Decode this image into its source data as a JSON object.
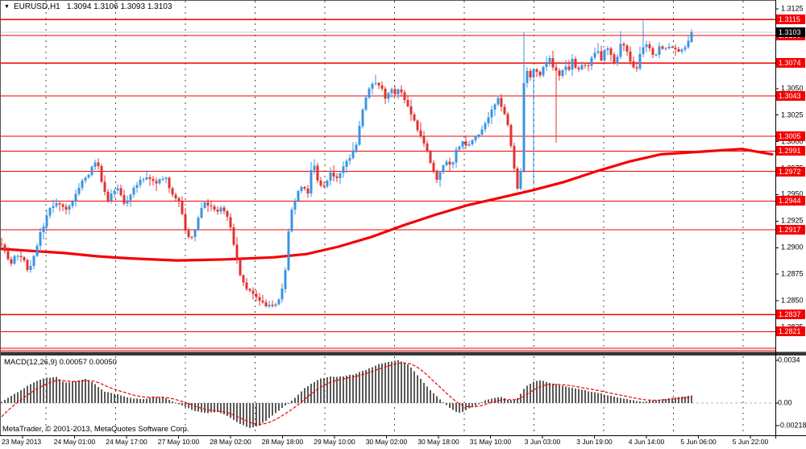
{
  "window": {
    "symbol_title": "EURUSD,H1",
    "ohlc_display": "1.3094 1.3106 1.3093 1.3103",
    "dropdown_icon": "triangle-down",
    "copyright": "MetaTrader, © 2001-2013, MetaQuotes Software Corp."
  },
  "indicator": {
    "label": "MACD(12,26,9) 0.00057 0.00050"
  },
  "colors": {
    "bull_candle": "#3b94e0",
    "bear_candle": "#e03232",
    "line_object": "#f50000",
    "trend_line": "#f50000",
    "current_price_line": "#c9c9c9",
    "grid": "#4a4a4a",
    "histogram": "#5a5a5a",
    "signal_line": "#f50000",
    "axis_text": "#000000",
    "background": "#ffffff"
  },
  "price_axis": {
    "ticks": [
      "1.3125",
      "1.3100",
      "1.3075",
      "1.3050",
      "1.3025",
      "1.3000",
      "1.2975",
      "1.2950",
      "1.2925",
      "1.2900",
      "1.2875",
      "1.2850",
      "1.2825"
    ],
    "tick_values": [
      1.3125,
      1.31,
      1.3075,
      1.305,
      1.3025,
      1.3,
      1.2975,
      1.295,
      1.2925,
      1.29,
      1.2875,
      1.285,
      1.2825
    ],
    "red_labels": [
      "1.3115",
      "1.3100",
      "1.3074",
      "1.3043",
      "1.3005",
      "1.2991",
      "1.2972",
      "1.2944",
      "1.2917",
      "1.2837",
      "1.2821"
    ],
    "current_label": "1.3103"
  },
  "time_axis": {
    "labels": [
      "23 May 2013",
      "24 May 01:00",
      "24 May 17:00",
      "27 May 10:00",
      "28 May 02:00",
      "28 May 18:00",
      "29 May 10:00",
      "30 May 02:00",
      "30 May 18:00",
      "31 May 10:00",
      "3 Jun 03:00",
      "3 Jun 19:00",
      "4 Jun 14:00",
      "5 Jun 06:00",
      "5 Jun 22:00"
    ]
  },
  "macd_axis": {
    "top": "0.0034",
    "zero": "0.00",
    "bottom": "-0.00218"
  },
  "chart_data": [
    {
      "type": "candlestick",
      "symbol": "EURUSD",
      "timeframe": "H1",
      "title": "EURUSD,H1 1.3094 1.3106 1.3093 1.3103",
      "current_ohlc": {
        "open": 1.3094,
        "high": 1.3106,
        "low": 1.3093,
        "close": 1.3103
      },
      "current_price": 1.3103,
      "y_range": [
        1.2815,
        1.313
      ],
      "x_labels": [
        "23 May 2013",
        "24 May 01:00",
        "24 May 17:00",
        "27 May 10:00",
        "28 May 02:00",
        "28 May 18:00",
        "29 May 10:00",
        "30 May 02:00",
        "30 May 18:00",
        "31 May 10:00",
        "3 Jun 03:00",
        "3 Jun 19:00",
        "4 Jun 14:00",
        "5 Jun 06:00",
        "5 Jun 22:00"
      ],
      "horizontal_lines": [
        1.3115,
        1.31,
        1.3074,
        1.3043,
        1.3005,
        1.2991,
        1.2972,
        1.2944,
        1.2917,
        1.2837,
        1.2821
      ],
      "trend_ma_points": [
        [
          0,
          1.2899
        ],
        [
          40,
          1.2897
        ],
        [
          80,
          1.2895
        ],
        [
          120,
          1.2892
        ],
        [
          160,
          1.289
        ],
        [
          220,
          1.2888
        ],
        [
          280,
          1.2889
        ],
        [
          340,
          1.2891
        ],
        [
          380,
          1.2894
        ],
        [
          420,
          1.2901
        ],
        [
          460,
          1.291
        ],
        [
          500,
          1.2921
        ],
        [
          540,
          1.2931
        ],
        [
          580,
          1.294
        ],
        [
          620,
          1.2947
        ],
        [
          660,
          1.2954
        ],
        [
          700,
          1.2962
        ],
        [
          740,
          1.2972
        ],
        [
          780,
          1.2981
        ],
        [
          820,
          1.2988
        ],
        [
          880,
          1.2991
        ],
        [
          920,
          1.2993
        ],
        [
          958,
          1.2988
        ]
      ],
      "price_path": [
        [
          2,
          1.2905
        ],
        [
          8,
          1.2893
        ],
        [
          14,
          1.2886
        ],
        [
          20,
          1.2893
        ],
        [
          28,
          1.289
        ],
        [
          36,
          1.2878
        ],
        [
          44,
          1.2898
        ],
        [
          52,
          1.2918
        ],
        [
          62,
          1.2936
        ],
        [
          72,
          1.2944
        ],
        [
          82,
          1.2934
        ],
        [
          92,
          1.2946
        ],
        [
          102,
          1.2962
        ],
        [
          112,
          1.2972
        ],
        [
          120,
          1.2983
        ],
        [
          126,
          1.2962
        ],
        [
          134,
          1.2945
        ],
        [
          144,
          1.2957
        ],
        [
          154,
          1.2942
        ],
        [
          164,
          1.2953
        ],
        [
          174,
          1.2963
        ],
        [
          184,
          1.2967
        ],
        [
          194,
          1.296
        ],
        [
          204,
          1.2968
        ],
        [
          214,
          1.2951
        ],
        [
          224,
          1.294
        ],
        [
          231,
          1.2914
        ],
        [
          238,
          1.2909
        ],
        [
          246,
          1.2928
        ],
        [
          253,
          1.2944
        ],
        [
          260,
          1.2939
        ],
        [
          268,
          1.2934
        ],
        [
          276,
          1.2938
        ],
        [
          284,
          1.2925
        ],
        [
          292,
          1.2898
        ],
        [
          300,
          1.2868
        ],
        [
          308,
          1.286
        ],
        [
          316,
          1.2855
        ],
        [
          324,
          1.2848
        ],
        [
          332,
          1.2845
        ],
        [
          340,
          1.2846
        ],
        [
          348,
          1.2852
        ],
        [
          354,
          1.288
        ],
        [
          360,
          1.2932
        ],
        [
          368,
          1.295
        ],
        [
          376,
          1.296
        ],
        [
          382,
          1.2953
        ],
        [
          388,
          1.2982
        ],
        [
          394,
          1.2964
        ],
        [
          402,
          1.2957
        ],
        [
          410,
          1.297
        ],
        [
          418,
          1.2964
        ],
        [
          426,
          1.2977
        ],
        [
          434,
          1.2986
        ],
        [
          442,
          1.2998
        ],
        [
          448,
          1.3022
        ],
        [
          454,
          1.3042
        ],
        [
          460,
          1.3053
        ],
        [
          466,
          1.3057
        ],
        [
          472,
          1.3051
        ],
        [
          478,
          1.3042
        ],
        [
          484,
          1.305
        ],
        [
          490,
          1.3043
        ],
        [
          496,
          1.305
        ],
        [
          502,
          1.304
        ],
        [
          508,
          1.303
        ],
        [
          514,
          1.302
        ],
        [
          520,
          1.3008
        ],
        [
          528,
          1.2993
        ],
        [
          536,
          1.2978
        ],
        [
          542,
          1.2962
        ],
        [
          548,
          1.2973
        ],
        [
          554,
          1.2983
        ],
        [
          560,
          1.2976
        ],
        [
          566,
          1.2991
        ],
        [
          574,
          1.3
        ],
        [
          580,
          1.2994
        ],
        [
          588,
          1.3002
        ],
        [
          596,
          1.301
        ],
        [
          604,
          1.302
        ],
        [
          612,
          1.3032
        ],
        [
          618,
          1.304
        ],
        [
          624,
          1.303
        ],
        [
          630,
          1.3015
        ],
        [
          636,
          1.2985
        ],
        [
          641,
          1.2958
        ],
        [
          645,
          1.2953
        ],
        [
          648,
          1.301
        ],
        [
          651,
          1.3075
        ],
        [
          654,
          1.3068
        ],
        [
          658,
          1.306
        ],
        [
          664,
          1.307
        ],
        [
          670,
          1.3062
        ],
        [
          676,
          1.3072
        ],
        [
          682,
          1.3078
        ],
        [
          688,
          1.3068
        ],
        [
          694,
          1.3062
        ],
        [
          700,
          1.3072
        ],
        [
          706,
          1.3068
        ],
        [
          710,
          1.3079
        ],
        [
          716,
          1.3065
        ],
        [
          722,
          1.3074
        ],
        [
          728,
          1.307
        ],
        [
          734,
          1.3079
        ],
        [
          740,
          1.3087
        ],
        [
          746,
          1.3077
        ],
        [
          752,
          1.3089
        ],
        [
          758,
          1.3081
        ],
        [
          764,
          1.3071
        ],
        [
          770,
          1.3093
        ],
        [
          776,
          1.3089
        ],
        [
          782,
          1.3077
        ],
        [
          788,
          1.3064
        ],
        [
          794,
          1.3084
        ],
        [
          800,
          1.3094
        ],
        [
          806,
          1.3087
        ],
        [
          812,
          1.3079
        ],
        [
          818,
          1.3089
        ],
        [
          824,
          1.3084
        ],
        [
          830,
          1.3091
        ],
        [
          836,
          1.3087
        ],
        [
          842,
          1.3084
        ],
        [
          848,
          1.3088
        ],
        [
          854,
          1.3094
        ],
        [
          858,
          1.3103
        ]
      ],
      "wick_events": [
        [
          12,
          "low",
          1.2848
        ],
        [
          36,
          "low",
          1.2871
        ],
        [
          120,
          "high",
          1.2994
        ],
        [
          344,
          "low",
          1.2823
        ],
        [
          388,
          "high",
          1.2989
        ],
        [
          466,
          "high",
          1.3063
        ],
        [
          612,
          "high",
          1.3046
        ],
        [
          651,
          "high",
          1.3103
        ],
        [
          662,
          "low",
          1.2959
        ],
        [
          690,
          "low",
          1.2999
        ],
        [
          770,
          "high",
          1.3104
        ],
        [
          798,
          "high",
          1.3114
        ]
      ]
    },
    {
      "type": "macd",
      "label": "MACD(12,26,9)",
      "macd_value": 0.00057,
      "signal_value": 0.0005,
      "y_range": [
        -0.00218,
        0.0034
      ],
      "points": [
        [
          2,
          0.0001
        ],
        [
          20,
          0.0008
        ],
        [
          40,
          0.0016
        ],
        [
          56,
          0.002
        ],
        [
          70,
          0.0021
        ],
        [
          80,
          0.0016
        ],
        [
          92,
          0.0017
        ],
        [
          106,
          0.0019
        ],
        [
          116,
          0.0016
        ],
        [
          130,
          0.0009
        ],
        [
          146,
          0.0007
        ],
        [
          160,
          0.0004
        ],
        [
          176,
          0.0003
        ],
        [
          190,
          0.0005
        ],
        [
          205,
          0.0004
        ],
        [
          215,
          0.0001
        ],
        [
          226,
          -0.0002
        ],
        [
          240,
          -0.0006
        ],
        [
          256,
          -0.0008
        ],
        [
          270,
          -0.0007
        ],
        [
          282,
          -0.001
        ],
        [
          296,
          -0.0016
        ],
        [
          310,
          -0.002
        ],
        [
          322,
          -0.0018
        ],
        [
          336,
          -0.0011
        ],
        [
          350,
          -0.0004
        ],
        [
          364,
          0.0003
        ],
        [
          380,
          0.0013
        ],
        [
          396,
          0.0019
        ],
        [
          410,
          0.0021
        ],
        [
          424,
          0.0021
        ],
        [
          440,
          0.0023
        ],
        [
          456,
          0.0027
        ],
        [
          470,
          0.0031
        ],
        [
          484,
          0.0033
        ],
        [
          494,
          0.0034
        ],
        [
          506,
          0.0031
        ],
        [
          516,
          0.0024
        ],
        [
          526,
          0.0016
        ],
        [
          536,
          0.0009
        ],
        [
          546,
          0.0003
        ],
        [
          556,
          -0.0003
        ],
        [
          566,
          -0.0007
        ],
        [
          572,
          -0.0008
        ],
        [
          582,
          -0.0004
        ],
        [
          592,
          -0.0002
        ],
        [
          602,
          0.0002
        ],
        [
          612,
          0.0004
        ],
        [
          622,
          0.0005
        ],
        [
          632,
          0.0002
        ],
        [
          642,
          0.0004
        ],
        [
          652,
          0.0013
        ],
        [
          662,
          0.0017
        ],
        [
          670,
          0.0018
        ],
        [
          682,
          0.0016
        ],
        [
          696,
          0.0014
        ],
        [
          712,
          0.0012
        ],
        [
          726,
          0.001
        ],
        [
          742,
          0.0008
        ],
        [
          756,
          0.0006
        ],
        [
          772,
          0.0004
        ],
        [
          786,
          0.0002
        ],
        [
          798,
          0.0001
        ],
        [
          810,
          0.0002
        ],
        [
          822,
          0.0003
        ],
        [
          834,
          0.0004
        ],
        [
          846,
          0.0005
        ],
        [
          858,
          0.0006
        ]
      ]
    }
  ]
}
